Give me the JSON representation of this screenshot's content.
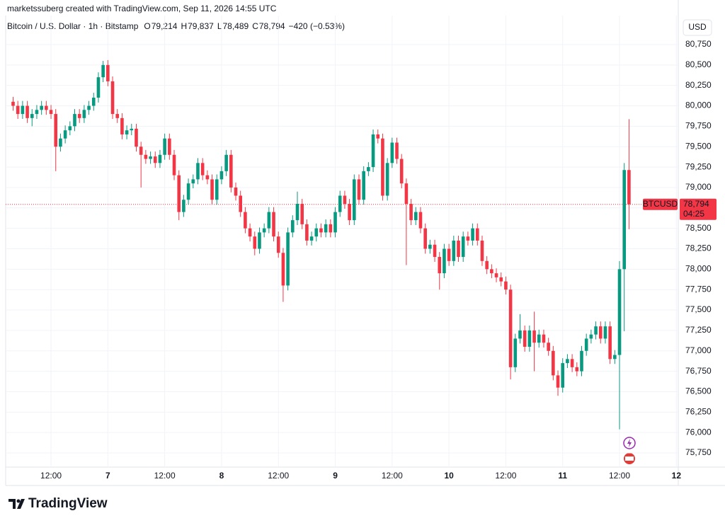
{
  "header": {
    "credit": "marketssuberg created with TradingView.com, Sep 11, 2026 14:55 UTC",
    "symbol_line": "Bitcoin / U.S. Dollar · 1h · Bitstamp",
    "legend": [
      {
        "key": "O",
        "value": "79,214"
      },
      {
        "key": "H",
        "value": "79,837"
      },
      {
        "key": "L",
        "value": "78,489"
      },
      {
        "key": "C",
        "value": "78,794"
      }
    ],
    "change": "−420 (−0.53%)"
  },
  "currency": "USD",
  "price_tag": {
    "symbol": "BTCUSD",
    "price": {
      "value": 78794,
      "label": "78,794"
    },
    "countdown": "04:25"
  },
  "logo": "TradingView",
  "chart_data": {
    "type": "candlestick",
    "up_color": "#089981",
    "down_color": "#f23645",
    "grid": true,
    "x": [
      4,
      5,
      6,
      7,
      8,
      9,
      10,
      11,
      12,
      13,
      14,
      15,
      16,
      17,
      18,
      19,
      20,
      21,
      22,
      23,
      24,
      25,
      26,
      27,
      28,
      29,
      30,
      31,
      32,
      33,
      34,
      35,
      36,
      37,
      38,
      39,
      40,
      41,
      42,
      43,
      44,
      45,
      46,
      47,
      48,
      49,
      50,
      51,
      52,
      53,
      54,
      55,
      56,
      57,
      58,
      59,
      60,
      61,
      62,
      63,
      64,
      65,
      66,
      67,
      68,
      69,
      70,
      71,
      72,
      73,
      74,
      75,
      76,
      77,
      78,
      79,
      80,
      81,
      82,
      83,
      84,
      85,
      86,
      87,
      88,
      89,
      90,
      91,
      92,
      93,
      94,
      95,
      96,
      97,
      98,
      99,
      100,
      101,
      102,
      103,
      104,
      105,
      106,
      107,
      108,
      109,
      110,
      111,
      112,
      113,
      114,
      115,
      116,
      117,
      118,
      119,
      120,
      121,
      122,
      123,
      124,
      125,
      126,
      127,
      128,
      129,
      130,
      131,
      132,
      133,
      134
    ],
    "open": [
      80050,
      80000,
      79900,
      80000,
      79850,
      79900,
      79950,
      80000,
      79950,
      79900,
      79500,
      79600,
      79700,
      79750,
      79900,
      79850,
      79950,
      80000,
      80100,
      80350,
      80500,
      80300,
      79900,
      79850,
      79650,
      79700,
      79720,
      79500,
      79400,
      79350,
      79380,
      79300,
      79400,
      79600,
      79400,
      79150,
      78700,
      78850,
      79050,
      79100,
      79300,
      79150,
      79100,
      78850,
      79100,
      79200,
      79400,
      79000,
      78900,
      78700,
      78500,
      78400,
      78250,
      78450,
      78500,
      78700,
      78400,
      78200,
      77800,
      78450,
      78600,
      78800,
      78550,
      78350,
      78400,
      78500,
      78450,
      78550,
      78450,
      78700,
      78900,
      78800,
      78600,
      79100,
      78850,
      79200,
      79250,
      79650,
      79600,
      78900,
      79300,
      79550,
      79350,
      79050,
      78800,
      78600,
      78700,
      78500,
      78250,
      78300,
      78150,
      77950,
      78250,
      78100,
      78350,
      78150,
      78400,
      78350,
      78500,
      78350,
      78100,
      78000,
      77950,
      77900,
      77850,
      77750,
      76800,
      77150,
      77250,
      77050,
      77250,
      77100,
      77200,
      77100,
      77000,
      76700,
      76550,
      76850,
      76900,
      76800,
      76750,
      77000,
      77150,
      77200,
      77300,
      77150,
      77300,
      76900,
      76950,
      78000,
      79214
    ],
    "high": [
      80110,
      80060,
      80060,
      80060,
      79960,
      80010,
      80060,
      80060,
      80010,
      79960,
      79660,
      79760,
      79810,
      79960,
      79960,
      80010,
      80060,
      80160,
      80410,
      80550,
      80560,
      80360,
      79960,
      79910,
      79760,
      79780,
      79780,
      79560,
      79460,
      79440,
      79440,
      79460,
      79660,
      79660,
      79460,
      79210,
      78910,
      79110,
      79160,
      79360,
      79360,
      79210,
      79160,
      79160,
      79260,
      79460,
      79460,
      79060,
      78960,
      78760,
      78560,
      78460,
      78510,
      78560,
      78760,
      78760,
      78460,
      78260,
      78510,
      78660,
      78950,
      78860,
      78610,
      78460,
      78560,
      78560,
      78610,
      78610,
      78760,
      78960,
      78960,
      78860,
      79160,
      79160,
      79260,
      79310,
      79710,
      79710,
      79660,
      79360,
      79610,
      79610,
      79410,
      79110,
      78860,
      78760,
      78760,
      78560,
      78360,
      78360,
      78210,
      78310,
      78310,
      78410,
      78410,
      78460,
      78460,
      78560,
      78560,
      78410,
      78160,
      78060,
      78010,
      77960,
      77910,
      77810,
      77210,
      77450,
      77310,
      77310,
      77480,
      77260,
      77260,
      77160,
      77060,
      76760,
      76910,
      76960,
      76960,
      76860,
      77060,
      77210,
      77260,
      77360,
      77360,
      77360,
      77360,
      77010,
      78100,
      79300,
      79837
    ],
    "low": [
      79940,
      79840,
      79840,
      79790,
      79750,
      79840,
      79890,
      79890,
      79840,
      79200,
      79440,
      79540,
      79640,
      79690,
      79790,
      79790,
      79890,
      79940,
      80040,
      80290,
      80240,
      79840,
      79790,
      79590,
      79590,
      79640,
      79440,
      79000,
      79290,
      79290,
      79240,
      79240,
      79340,
      79340,
      79090,
      78600,
      78640,
      78790,
      78990,
      79040,
      79090,
      79040,
      78790,
      78790,
      79040,
      79140,
      78940,
      78840,
      78640,
      78440,
      78340,
      78170,
      78190,
      78390,
      78440,
      78340,
      78140,
      77600,
      77740,
      78390,
      78540,
      78490,
      78290,
      78290,
      78340,
      78390,
      78390,
      78390,
      78390,
      78640,
      78740,
      78540,
      78540,
      78790,
      78790,
      79140,
      79190,
      79540,
      78840,
      78840,
      79240,
      79290,
      78990,
      78050,
      78540,
      78540,
      78440,
      78190,
      78190,
      78090,
      77750,
      77890,
      78040,
      78040,
      78090,
      78090,
      78290,
      78290,
      78290,
      78040,
      77940,
      77890,
      77840,
      77790,
      77690,
      76650,
      76740,
      77090,
      76990,
      76990,
      76750,
      77040,
      77040,
      76940,
      76640,
      76450,
      76490,
      76790,
      76740,
      76690,
      76690,
      76940,
      77090,
      77140,
      77090,
      77090,
      76840,
      76840,
      76040,
      77240,
      78489
    ],
    "close": [
      80000,
      79900,
      80000,
      79850,
      79900,
      79950,
      80000,
      79950,
      79900,
      79500,
      79600,
      79700,
      79750,
      79900,
      79850,
      79950,
      80000,
      80100,
      80350,
      80500,
      80300,
      79900,
      79850,
      79650,
      79700,
      79720,
      79500,
      79400,
      79350,
      79380,
      79300,
      79400,
      79600,
      79400,
      79150,
      78700,
      78850,
      79050,
      79100,
      79300,
      79150,
      79100,
      78850,
      79100,
      79200,
      79400,
      79000,
      78900,
      78700,
      78500,
      78400,
      78250,
      78450,
      78500,
      78700,
      78400,
      78200,
      77800,
      78450,
      78600,
      78800,
      78550,
      78350,
      78400,
      78500,
      78450,
      78550,
      78450,
      78700,
      78900,
      78800,
      78600,
      79100,
      78850,
      79200,
      79250,
      79650,
      79600,
      78900,
      79300,
      79550,
      79350,
      79050,
      78800,
      78600,
      78700,
      78500,
      78250,
      78300,
      78150,
      77950,
      78250,
      78100,
      78350,
      78150,
      78400,
      78350,
      78500,
      78350,
      78100,
      78000,
      77950,
      77900,
      77850,
      77750,
      76800,
      77150,
      77250,
      77050,
      77250,
      77100,
      77200,
      77100,
      77000,
      76700,
      76550,
      76850,
      76900,
      76800,
      76750,
      77000,
      77150,
      77200,
      77300,
      77150,
      77300,
      76900,
      76950,
      78000,
      79214,
      78794
    ],
    "xlim": [
      2.43,
      144.4
    ],
    "xticks": [
      {
        "value": 12,
        "label": "12:00"
      },
      {
        "value": 24,
        "label": "7"
      },
      {
        "value": 36,
        "label": "12:00"
      },
      {
        "value": 48,
        "label": "8"
      },
      {
        "value": 60,
        "label": "12:00"
      },
      {
        "value": 72,
        "label": "9"
      },
      {
        "value": 84,
        "label": "12:00"
      },
      {
        "value": 96,
        "label": "10"
      },
      {
        "value": 108,
        "label": "12:00"
      },
      {
        "value": 120,
        "label": "11"
      },
      {
        "value": 132,
        "label": "12:00"
      },
      {
        "value": 144,
        "label": "12"
      }
    ],
    "ylim": [
      75577,
      81105
    ],
    "yticks": [
      {
        "value": 75750,
        "label": "75,750"
      },
      {
        "value": 76000,
        "label": "76,000"
      },
      {
        "value": 76250,
        "label": "76,250"
      },
      {
        "value": 76500,
        "label": "76,500"
      },
      {
        "value": 76750,
        "label": "76,750"
      },
      {
        "value": 77000,
        "label": "77,000"
      },
      {
        "value": 77250,
        "label": "77,250"
      },
      {
        "value": 77500,
        "label": "77,500"
      },
      {
        "value": 77750,
        "label": "77,750"
      },
      {
        "value": 78000,
        "label": "78,000"
      },
      {
        "value": 78250,
        "label": "78,250"
      },
      {
        "value": 78500,
        "label": "78,500"
      },
      {
        "value": 78750,
        "label": "78,750"
      },
      {
        "value": 79000,
        "label": "79,000"
      },
      {
        "value": 79250,
        "label": "79,250"
      },
      {
        "value": 79500,
        "label": "79,500"
      },
      {
        "value": 79750,
        "label": "79,750"
      },
      {
        "value": 80000,
        "label": "80,000"
      },
      {
        "value": 80250,
        "label": "80,250"
      },
      {
        "value": 80500,
        "label": "80,500"
      },
      {
        "value": 80750,
        "label": "80,750"
      }
    ]
  }
}
